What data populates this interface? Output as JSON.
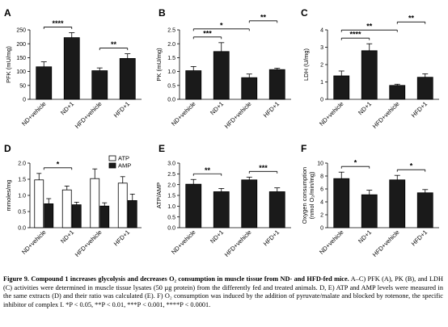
{
  "figure": {
    "panels": [
      {
        "letter": "A",
        "ylabel": "PFK (mU/mg)",
        "ylim": [
          0,
          250
        ],
        "yticks": [
          0,
          50,
          100,
          150,
          200,
          250
        ]
      },
      {
        "letter": "B",
        "ylabel": "PK (mU/mg)",
        "ylim": [
          0,
          2.5
        ],
        "yticks": [
          0.0,
          0.5,
          1.0,
          1.5,
          2.0,
          2.5
        ]
      },
      {
        "letter": "C",
        "ylabel": "LDH (U/mg)",
        "ylim": [
          0,
          4
        ],
        "yticks": [
          0,
          1,
          2,
          3,
          4
        ]
      },
      {
        "letter": "D",
        "ylabel": "mmoles/mg",
        "ylim": [
          0,
          2.0
        ],
        "yticks": [
          0.0,
          0.5,
          1.0,
          1.5,
          2.0
        ],
        "legend": [
          "ATP",
          "AMP"
        ]
      },
      {
        "letter": "E",
        "ylabel": "ATP/AMP",
        "ylim": [
          0,
          3.0
        ],
        "yticks": [
          0.0,
          0.5,
          1.0,
          1.5,
          2.0,
          2.5,
          3.0
        ]
      },
      {
        "letter": "F",
        "ylabel": "Oxygen consumption (nmol O₂/min/mg)",
        "ylim": [
          0,
          10
        ],
        "yticks": [
          0,
          2,
          4,
          6,
          8,
          10
        ]
      }
    ],
    "caption": {
      "label": "Figure 9.",
      "title": "Compound 1 increases glycolysis and decreases O₂ consumption in muscle tissue from ND- and HFD-fed mice.",
      "body": "A–C) PFK (A), PK (B), and LDH (C) activities were determined in muscle tissue lysates (50 µg protein) from the differently fed and treated animals. D, E) ATP and AMP levels were measured in the same extracts (D) and their ratio was calculated (E). F) O₂ consumption was induced by the addition of pyruvate/malate and blocked by rotenone, the specific inhibitor of complex I. *P < 0.05, **P < 0.01, ***P < 0.001, ****P < 0.0001."
    }
  },
  "chart_data": [
    {
      "type": "bar",
      "panel": "A",
      "categories": [
        "ND+vehicle",
        "ND+1",
        "HFD+vehicle",
        "HFD+1"
      ],
      "values": [
        117,
        222,
        103,
        147
      ],
      "errors": [
        18,
        18,
        10,
        17
      ],
      "ylabel": "PFK (mU/mg)",
      "ylim": [
        0,
        250
      ],
      "significance": [
        {
          "from": 0,
          "to": 1,
          "label": "****"
        },
        {
          "from": 2,
          "to": 3,
          "label": "**"
        }
      ]
    },
    {
      "type": "bar",
      "panel": "B",
      "categories": [
        "ND+vehicle",
        "ND+1",
        "HFD+vehicle",
        "HFD+1"
      ],
      "values": [
        1.03,
        1.72,
        0.78,
        1.07
      ],
      "errors": [
        0.15,
        0.32,
        0.13,
        0.05
      ],
      "ylabel": "PK (mU/mg)",
      "ylim": [
        0,
        2.5
      ],
      "significance": [
        {
          "from": 0,
          "to": 1,
          "label": "***"
        },
        {
          "from": 0,
          "to": 2,
          "label": "*"
        },
        {
          "from": 2,
          "to": 3,
          "label": "**"
        }
      ]
    },
    {
      "type": "bar",
      "panel": "C",
      "categories": [
        "ND+vehicle",
        "ND+1",
        "HFD+vehicle",
        "HFD+1"
      ],
      "values": [
        1.35,
        2.8,
        0.8,
        1.27
      ],
      "errors": [
        0.28,
        0.4,
        0.07,
        0.2
      ],
      "ylabel": "LDH (U/mg)",
      "ylim": [
        0,
        4
      ],
      "significance": [
        {
          "from": 0,
          "to": 1,
          "label": "****"
        },
        {
          "from": 0,
          "to": 2,
          "label": "**"
        },
        {
          "from": 2,
          "to": 3,
          "label": "**"
        }
      ]
    },
    {
      "type": "bar",
      "panel": "D",
      "categories": [
        "ND+vehicle",
        "ND+1",
        "HFD+vehicle",
        "HFD+1"
      ],
      "series": [
        {
          "name": "ATP",
          "values": [
            1.48,
            1.17,
            1.52,
            1.38
          ],
          "errors": [
            0.2,
            0.12,
            0.3,
            0.2
          ]
        },
        {
          "name": "AMP",
          "values": [
            0.74,
            0.71,
            0.67,
            0.84
          ],
          "errors": [
            0.16,
            0.08,
            0.1,
            0.2
          ]
        }
      ],
      "ylabel": "mmoles/mg",
      "ylim": [
        0,
        2.0
      ],
      "legend": "top-right",
      "significance": [
        {
          "from": 0,
          "to": 1,
          "label": "*"
        }
      ]
    },
    {
      "type": "bar",
      "panel": "E",
      "categories": [
        "ND+vehicle",
        "ND+1",
        "HFD+vehicle",
        "HFD+1"
      ],
      "values": [
        2.02,
        1.67,
        2.22,
        1.67
      ],
      "errors": [
        0.22,
        0.15,
        0.13,
        0.18
      ],
      "ylabel": "ATP/AMP",
      "ylim": [
        0,
        3.0
      ],
      "significance": [
        {
          "from": 0,
          "to": 1,
          "label": "**"
        },
        {
          "from": 2,
          "to": 3,
          "label": "***"
        }
      ]
    },
    {
      "type": "bar",
      "panel": "F",
      "categories": [
        "ND+vehicle",
        "ND+1",
        "HFD+vehicle",
        "HFD+1"
      ],
      "values": [
        7.6,
        5.1,
        7.4,
        5.4
      ],
      "errors": [
        1.0,
        0.7,
        0.7,
        0.5
      ],
      "ylabel": "Oxygen consumption (nmol O₂/min/mg)",
      "ylim": [
        0,
        10
      ],
      "significance": [
        {
          "from": 0,
          "to": 1,
          "label": "*"
        },
        {
          "from": 2,
          "to": 3,
          "label": "*"
        }
      ]
    }
  ]
}
